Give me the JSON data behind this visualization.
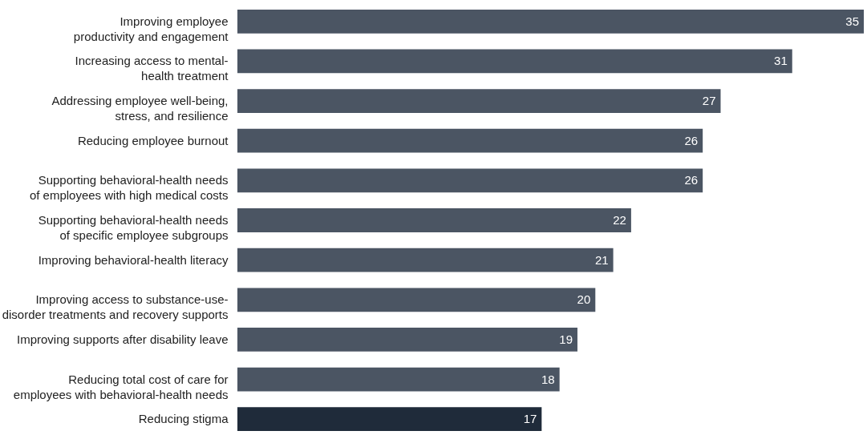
{
  "chart_data": {
    "type": "bar",
    "orientation": "horizontal",
    "data_labels": true,
    "categories": [
      "Improving employee\nproductivity and engagement",
      "Increasing access to mental-\nhealth treatment",
      "Addressing employee well-being,\nstress, and resilience",
      "Reducing employee burnout",
      "Supporting behavioral-health needs\nof employees with high medical costs",
      "Supporting behavioral-health needs\nof specific employee subgroups",
      "Improving behavioral-health literacy",
      "Improving access to substance-use-\ndisorder treatments and recovery supports",
      "Improving supports after disability leave",
      "Reducing total cost of care for\nemployees with behavioral-health needs",
      "Reducing stigma"
    ],
    "values": [
      35,
      31,
      27,
      26,
      26,
      22,
      21,
      20,
      19,
      18,
      17
    ],
    "colors": [
      "#4b5563",
      "#4b5563",
      "#4b5563",
      "#4b5563",
      "#4b5563",
      "#4b5563",
      "#4b5563",
      "#4b5563",
      "#4b5563",
      "#4b5563",
      "#1f2b3a"
    ]
  }
}
